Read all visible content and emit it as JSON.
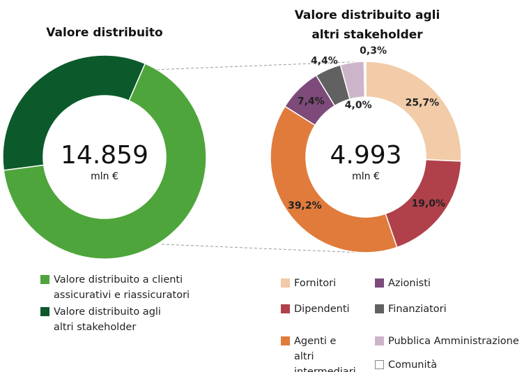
{
  "chart_data": [
    {
      "type": "donut",
      "title": "Valore distribuito",
      "center_label": "14.859",
      "center_unit": "mln €",
      "categories": [
        "Valore distribuito a clienti assicurativi e riassicuratori",
        "Valore distribuito agli altri stakeholder"
      ],
      "values": [
        9866,
        4993
      ],
      "colors": [
        "#4ea53b",
        "#0c5a2b"
      ]
    },
    {
      "type": "donut",
      "title": "Valore distribuito agli altri stakeholder",
      "center_label": "4.993",
      "center_unit": "mln €",
      "categories": [
        "Fornitori",
        "Dipendenti",
        "Agenti e altri intermediari",
        "Azionisti",
        "Finanziatori",
        "Pubblica Amministrazione",
        "Comunità"
      ],
      "values": [
        25.7,
        19.0,
        39.2,
        7.4,
        4.4,
        4.0,
        0.3
      ],
      "value_labels": [
        "25,7%",
        "19,0%",
        "39,2%",
        "7,4%",
        "4,4%",
        "4,0%",
        "0,3%"
      ],
      "colors": [
        "#f2cba8",
        "#b0404a",
        "#e07b3c",
        "#7d4a7a",
        "#616161",
        "#cdb5c9",
        "#ffffff"
      ]
    }
  ]
}
